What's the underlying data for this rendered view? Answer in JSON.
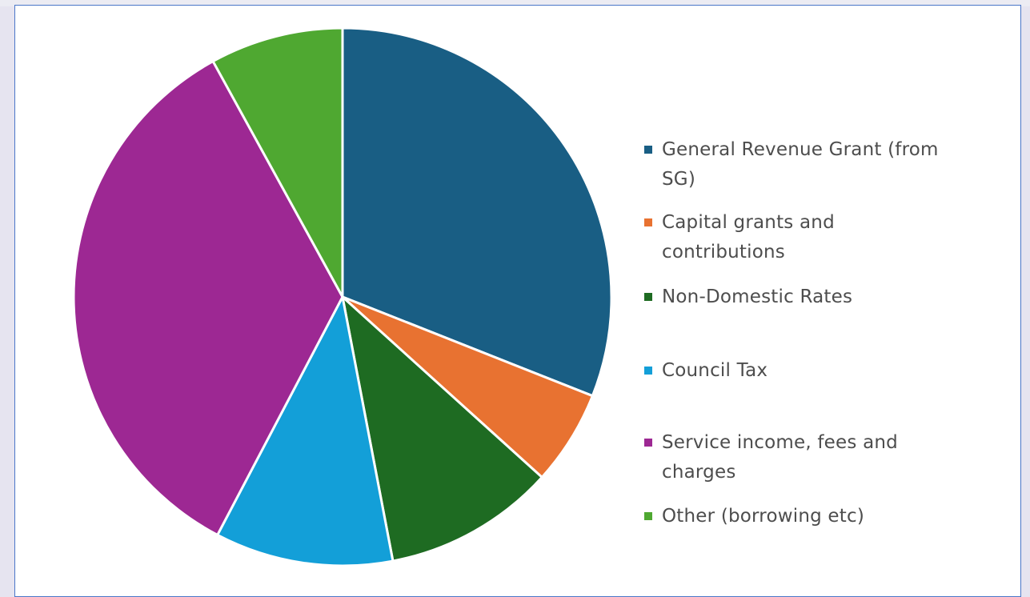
{
  "chart_data": {
    "type": "pie",
    "legend_position": "right",
    "start_angle_deg": 0,
    "direction": "clockwise",
    "slices": [
      {
        "label": "General Revenue Grant (from SG)",
        "value": 31,
        "color": "#195e84"
      },
      {
        "label": "Capital grants and contributions",
        "value": 5.7,
        "color": "#e87231"
      },
      {
        "label": "Non-Domestic Rates",
        "value": 10.3,
        "color": "#1e6b22"
      },
      {
        "label": "Council Tax",
        "value": 10.7,
        "color": "#139fd8"
      },
      {
        "label": "Service income, fees and charges",
        "value": 34.3,
        "color": "#9d2893"
      },
      {
        "label": "Other (borrowing etc)",
        "value": 8,
        "color": "#4fa831"
      }
    ],
    "legend": {
      "items": [
        {
          "lines": [
            "General Revenue Grant (from",
            "SG)"
          ]
        },
        {
          "lines": [
            "Capital grants and",
            "contributions"
          ]
        },
        {
          "lines": [
            "Non-Domestic Rates"
          ]
        },
        {
          "lines": [
            "Council Tax"
          ]
        },
        {
          "lines": [
            "Service income, fees and",
            "charges"
          ]
        },
        {
          "lines": [
            "Other (borrowing etc)"
          ]
        }
      ]
    }
  }
}
